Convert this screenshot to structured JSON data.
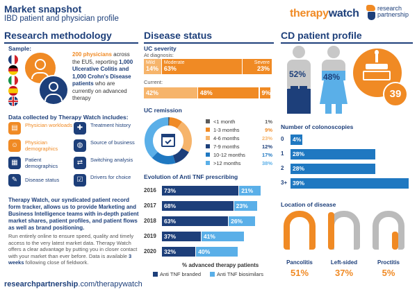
{
  "header": {
    "title": "Market snapshot",
    "subtitle": "IBD patient and physician profile"
  },
  "logo": {
    "therapy": "therapy",
    "watch": "watch",
    "rp1": "research",
    "rp2": "partnership"
  },
  "method": {
    "title": "Research methodology",
    "sample_label": "Sample:",
    "sample_p1": "200 physicians",
    "sample_p2": " across the EU5, reporting ",
    "sample_p3": "1,000 Ulcerative Colitis and 1,000 Crohn's Disease patients",
    "sample_p4": " who are currently on advanced therapy",
    "collected_title": "Data collected by Therapy Watch includes:",
    "items": [
      {
        "label": "Physician workloads",
        "icon": "clipboard-icon",
        "color": "#f08a24"
      },
      {
        "label": "Treatment history",
        "icon": "medical-kit-icon",
        "color": "#1d3f7a"
      },
      {
        "label": "Physician demographics",
        "icon": "people-icon",
        "color": "#f08a24"
      },
      {
        "label": "Source of business",
        "icon": "globe-icon",
        "color": "#1d3f7a"
      },
      {
        "label": "Patient demographics",
        "icon": "patient-file-icon",
        "color": "#1d3f7a"
      },
      {
        "label": "Switching analysis",
        "icon": "switch-arrows-icon",
        "color": "#1d3f7a"
      },
      {
        "label": "Disease status",
        "icon": "speech-icon",
        "color": "#1d3f7a"
      },
      {
        "label": "Drivers for choice",
        "icon": "checklist-icon",
        "color": "#1d3f7a"
      }
    ],
    "bold_text": "Therapy Watch, our syndicated patient record form tracker, allows us to provide Marketing and Business Intelligence teams with in-depth patient market shares, patient profiles, and patient flows as well as brand positioning.",
    "body_text1": "Run entirely online to ensure speed, quality and timely access to the very latest market data. Therapy Watch offers a clear advantage by putting you in closer contact with your market than ever before. Data is available ",
    "body_bold": "3 weeks",
    "body_text2": " following close of fieldwork."
  },
  "footer": {
    "url_bold": "researchpartnership",
    "url_rest": ".com/therapywatch"
  },
  "disease": {
    "title": "Disease status",
    "uc_severity": "UC severity",
    "at_diagnosis": "At diagnosis:",
    "current": "Current:",
    "diag": {
      "mild_label": "Mild",
      "mild": "14%",
      "moderate_label": "Moderate",
      "moderate": "63%",
      "severe_label": "Severe",
      "severe": "23%",
      "mild_v": 14,
      "moderate_v": 63,
      "severe_v": 23
    },
    "curr": {
      "mild": "42%",
      "moderate": "48%",
      "severe": "9%",
      "mild_v": 42,
      "moderate_v": 48,
      "severe_v": 9
    },
    "remission_title": "UC remission",
    "remission": [
      {
        "label": "<1 month",
        "value": "1%",
        "v": 1,
        "color": "#5c5c5c"
      },
      {
        "label": "1-3 months",
        "value": "9%",
        "v": 9,
        "color": "#f08a24"
      },
      {
        "label": "4-6 months",
        "value": "23%",
        "v": 23,
        "color": "#f6b46b"
      },
      {
        "label": "7-9 months",
        "value": "12%",
        "v": 12,
        "color": "#1d3f7a"
      },
      {
        "label": "10-12 months",
        "value": "17%",
        "v": 17,
        "color": "#1f78c1"
      },
      {
        "label": ">12 months",
        "value": "38%",
        "v": 38,
        "color": "#5aafe8"
      }
    ],
    "antitnf_title": "Evolution of Anti TNF prescribing",
    "xlabel": "% advanced therapy patients",
    "legend_branded": "Anti TNF branded",
    "legend_bio": "Anti TNF biosimilars"
  },
  "chart_data": {
    "type": "bar",
    "categories": [
      "2016",
      "2017",
      "2018",
      "2019",
      "2020"
    ],
    "series": [
      {
        "name": "Anti TNF branded",
        "values": [
          73,
          68,
          63,
          37,
          32
        ]
      },
      {
        "name": "Anti TNF biosimilars",
        "values": [
          21,
          23,
          26,
          41,
          40
        ]
      }
    ],
    "xlabel": "% advanced therapy patients"
  },
  "cd": {
    "title": "CD patient profile",
    "male": "52%",
    "female": "48%",
    "age": "39",
    "colon_title": "Number of colonoscopies",
    "colon": [
      {
        "label": "0",
        "value": "4%",
        "v": 4
      },
      {
        "label": "1",
        "value": "28%",
        "v": 28
      },
      {
        "label": "2",
        "value": "28%",
        "v": 28
      },
      {
        "label": "3+",
        "value": "39%",
        "v": 39
      }
    ],
    "location_title": "Location of disease",
    "locations": [
      {
        "label": "Pancolitis",
        "value": "51%",
        "color": "#f08a24"
      },
      {
        "label": "Left-sided",
        "value": "37%",
        "color": "#b8b8b8"
      },
      {
        "label": "Proctitis",
        "value": "5%",
        "color": "#b8b8b8"
      }
    ]
  },
  "colors": {
    "navy": "#1d3f7a",
    "orange": "#f08a24",
    "lightorange": "#f6b46b",
    "blue": "#1f78c1",
    "lightblue": "#5aafe8"
  }
}
